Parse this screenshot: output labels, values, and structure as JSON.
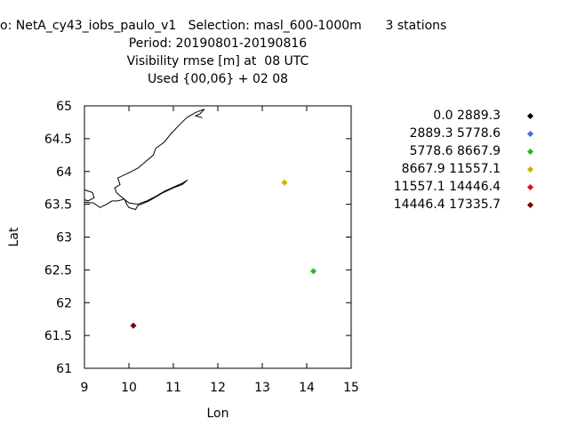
{
  "title": {
    "line1": "o: NetA_cy43_iobs_paulo_v1   Selection: masl_600-1000m      3 stations",
    "line2": "Period: 20190801-20190816",
    "line3": "Visibility rmse [m] at  08 UTC",
    "line4": "Used {00,06} + 02 08"
  },
  "chart_data": {
    "type": "scatter",
    "xlabel": "Lon",
    "ylabel": "Lat",
    "xlim": [
      9,
      15
    ],
    "ylim": [
      61,
      65
    ],
    "xticks": [
      "9",
      "10",
      "11",
      "12",
      "13",
      "14",
      "15"
    ],
    "yticks": [
      "61",
      "61.5",
      "62",
      "62.5",
      "63",
      "63.5",
      "64",
      "64.5",
      "65"
    ],
    "legend_position": "right",
    "legend": [
      {
        "label": "0.0 2889.3",
        "color": "#000000"
      },
      {
        "label": "2889.3 5778.6",
        "color": "#3a6fd8"
      },
      {
        "label": "5778.6 8667.9",
        "color": "#22bb22"
      },
      {
        "label": "8667.9 11557.1",
        "color": "#c8b400"
      },
      {
        "label": "11557.1 14446.4",
        "color": "#e01010"
      },
      {
        "label": "14446.4 17335.7",
        "color": "#7a0000"
      }
    ],
    "points": [
      {
        "x": 13.5,
        "y": 63.83,
        "class": 3
      },
      {
        "x": 14.15,
        "y": 62.48,
        "class": 2
      },
      {
        "x": 10.1,
        "y": 61.65,
        "class": 5
      }
    ],
    "coastline": [
      [
        [
          9.0,
          63.72
        ],
        [
          9.18,
          63.68
        ],
        [
          9.22,
          63.6
        ],
        [
          9.08,
          63.55
        ],
        [
          9.0,
          63.57
        ]
      ],
      [
        [
          9.0,
          63.53
        ],
        [
          9.2,
          63.52
        ],
        [
          9.35,
          63.45
        ],
        [
          9.5,
          63.5
        ],
        [
          9.62,
          63.55
        ],
        [
          9.75,
          63.55
        ],
        [
          9.9,
          63.58
        ],
        [
          9.95,
          63.5
        ],
        [
          10.0,
          63.45
        ],
        [
          10.15,
          63.42
        ],
        [
          10.2,
          63.48
        ],
        [
          10.45,
          63.55
        ],
        [
          10.75,
          63.67
        ],
        [
          11.0,
          63.75
        ],
        [
          11.2,
          63.8
        ],
        [
          11.32,
          63.87
        ],
        [
          11.2,
          63.82
        ],
        [
          11.0,
          63.76
        ],
        [
          10.8,
          63.7
        ],
        [
          10.6,
          63.62
        ],
        [
          10.4,
          63.55
        ],
        [
          10.2,
          63.5
        ],
        [
          10.0,
          63.52
        ],
        [
          9.85,
          63.6
        ],
        [
          9.72,
          63.68
        ],
        [
          9.68,
          63.75
        ],
        [
          9.8,
          63.8
        ],
        [
          9.75,
          63.9
        ],
        [
          10.0,
          63.98
        ],
        [
          10.2,
          64.05
        ],
        [
          10.55,
          64.25
        ],
        [
          10.6,
          64.35
        ],
        [
          10.8,
          64.45
        ],
        [
          10.95,
          64.58
        ],
        [
          11.15,
          64.72
        ],
        [
          11.3,
          64.82
        ],
        [
          11.5,
          64.9
        ],
        [
          11.7,
          64.95
        ],
        [
          11.6,
          64.88
        ],
        [
          11.5,
          64.85
        ],
        [
          11.65,
          64.82
        ]
      ]
    ]
  }
}
